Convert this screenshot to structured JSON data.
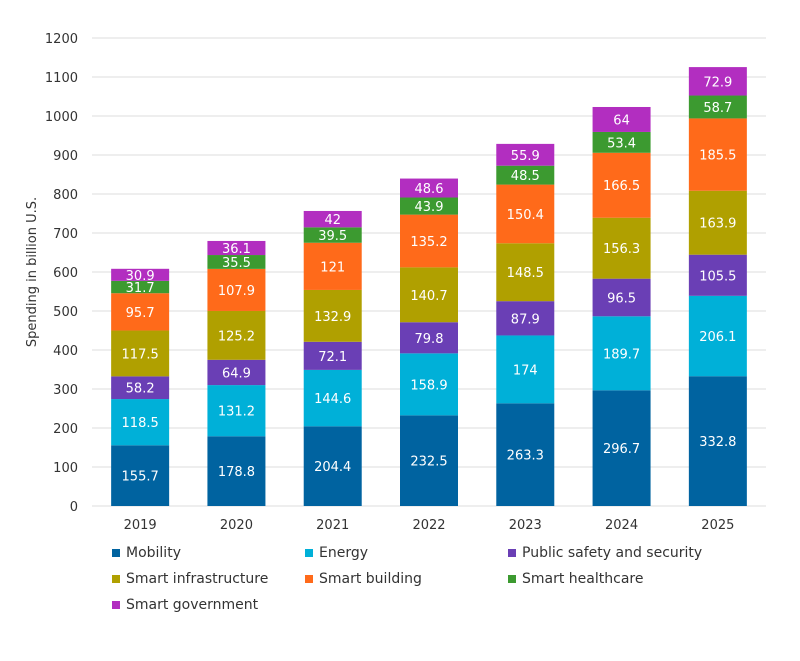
{
  "chart_data": {
    "type": "bar",
    "stacked": true,
    "categories": [
      "2019",
      "2020",
      "2021",
      "2022",
      "2023",
      "2024",
      "2025"
    ],
    "ylabel": "Spending in billion U.S.",
    "xlabel": "",
    "ylim": [
      0,
      1200
    ],
    "yticks": [
      0,
      100,
      200,
      300,
      400,
      500,
      600,
      700,
      800,
      900,
      1000,
      1100,
      1200
    ],
    "grid": true,
    "legend_position": "bottom",
    "series": [
      {
        "name": "Mobility",
        "color": "#0063a0",
        "values": [
          155.7,
          178.8,
          204.4,
          232.5,
          263.3,
          296.7,
          332.8
        ]
      },
      {
        "name": "Energy",
        "color": "#00b0d8",
        "values": [
          118.5,
          131.2,
          144.6,
          158.9,
          174,
          189.7,
          206.1
        ]
      },
      {
        "name": "Public safety and security",
        "color": "#6a3fb5",
        "values": [
          58.2,
          64.9,
          72.1,
          79.8,
          87.9,
          96.5,
          105.5
        ]
      },
      {
        "name": "Smart infrastructure",
        "color": "#b0a000",
        "values": [
          117.5,
          125.2,
          132.9,
          140.7,
          148.5,
          156.3,
          163.9
        ]
      },
      {
        "name": "Smart building",
        "color": "#ff6a1a",
        "values": [
          95.7,
          107.9,
          121,
          135.2,
          150.4,
          166.5,
          185.5
        ]
      },
      {
        "name": "Smart healthcare",
        "color": "#3c9a30",
        "values": [
          31.7,
          35.5,
          39.5,
          43.9,
          48.5,
          53.4,
          58.7
        ]
      },
      {
        "name": "Smart government",
        "color": "#b22ec0",
        "values": [
          30.9,
          36.1,
          42,
          48.6,
          55.9,
          64,
          72.9
        ]
      }
    ]
  }
}
